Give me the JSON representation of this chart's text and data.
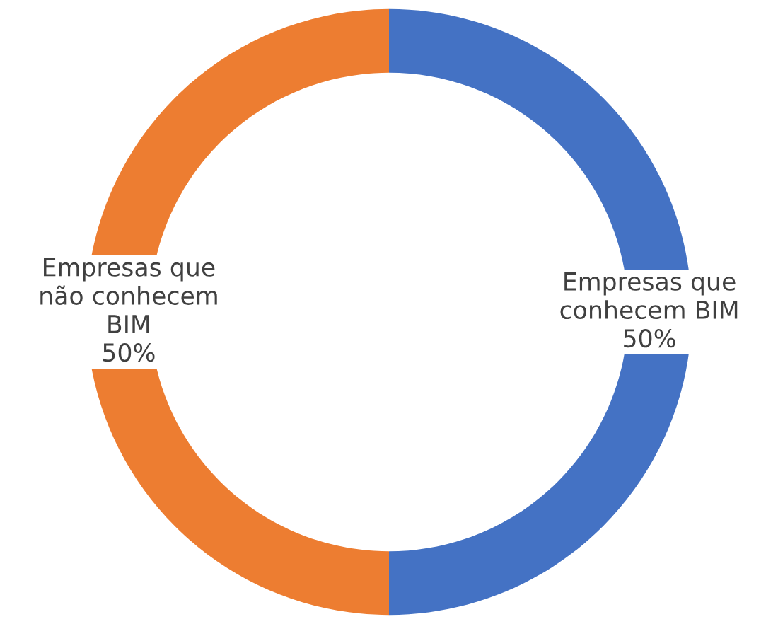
{
  "chart_data": {
    "type": "donut",
    "categories": [
      "Empresas que\nconhecem BIM",
      "Empresas que\nnão conhecem\nBIM"
    ],
    "values": [
      50,
      50
    ],
    "colors": [
      "#4472c4",
      "#ed7d31"
    ],
    "value_labels": [
      "50%",
      "50%"
    ],
    "legend": false
  }
}
